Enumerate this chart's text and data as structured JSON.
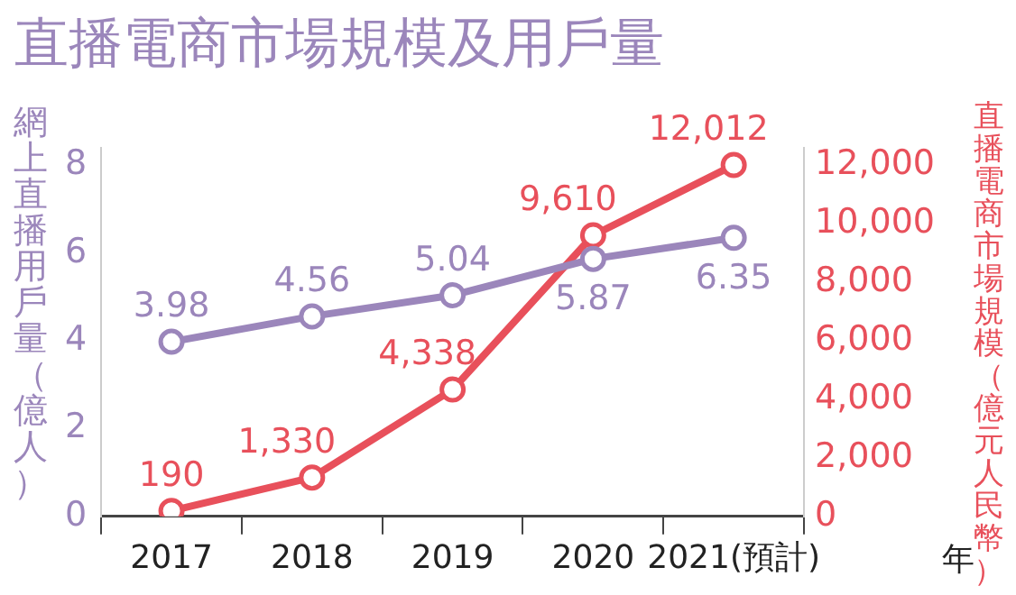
{
  "chart_data": {
    "type": "line",
    "title": "直播電商市場規模及用戶量",
    "xlabel": "年",
    "ylabel": "網上直播用戶量（億人）",
    "y2label": "直播電商市場規模（億元人民幣）",
    "categories": [
      "2017",
      "2018",
      "2019",
      "2020",
      "2021(預計)"
    ],
    "series": [
      {
        "name": null,
        "color": "#9b86bb",
        "values": [
          3.98,
          4.56,
          5.04,
          5.87,
          6.35
        ],
        "value_labels": [
          "3.98",
          "4.56",
          "5.04",
          "5.87",
          "6.35"
        ]
      },
      {
        "name": null,
        "color": "#e8505b",
        "axis": "y2",
        "values": [
          190,
          1330,
          4338,
          9610,
          12012
        ],
        "value_labels": [
          "190",
          "1,330",
          "4,338",
          "9,610",
          "12,012"
        ]
      }
    ],
    "ylim": [
      0,
      8.4
    ],
    "yticks": [
      0,
      2,
      4,
      6,
      8
    ],
    "y2lim": [
      0,
      12600
    ],
    "y2ticks": [
      0,
      {
        "value": 2000,
        "label": "2,000"
      },
      {
        "value": 4000,
        "label": "4,000"
      },
      {
        "value": 6000,
        "label": "6,000"
      },
      {
        "value": 8000,
        "label": "8,000"
      },
      {
        "value": 10000,
        "label": "10,000"
      },
      {
        "value": 12000,
        "label": "12,000"
      }
    ],
    "grid": false,
    "legend": false,
    "marker": "circle",
    "line_style": "solid"
  }
}
